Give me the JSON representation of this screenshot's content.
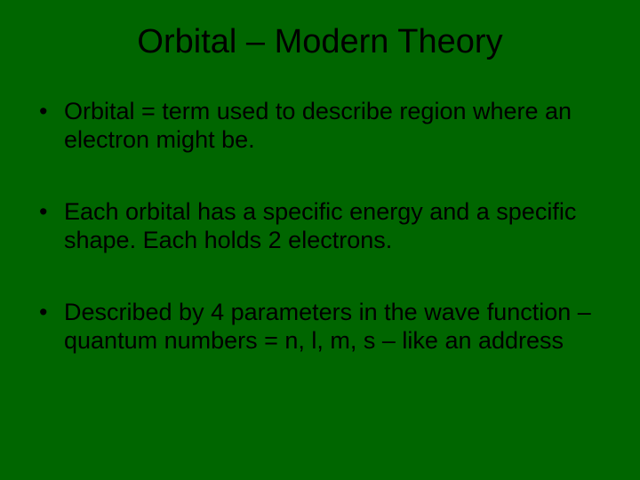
{
  "slide": {
    "background_color": "#006600",
    "text_color": "#000000",
    "font_family": "Arial",
    "title": {
      "text": "Orbital – Modern Theory",
      "fontsize": 38,
      "align": "center"
    },
    "bullets": [
      {
        "text": "Orbital = term used to describe region where an electron might be.",
        "fontsize": 27
      },
      {
        "text": " Each orbital has a specific energy and a specific shape.  Each holds 2 electrons.",
        "fontsize": 27
      },
      {
        "text": "Described by 4 parameters in the wave function – quantum numbers = n, l, m, s – like an address",
        "fontsize": 27
      }
    ]
  }
}
